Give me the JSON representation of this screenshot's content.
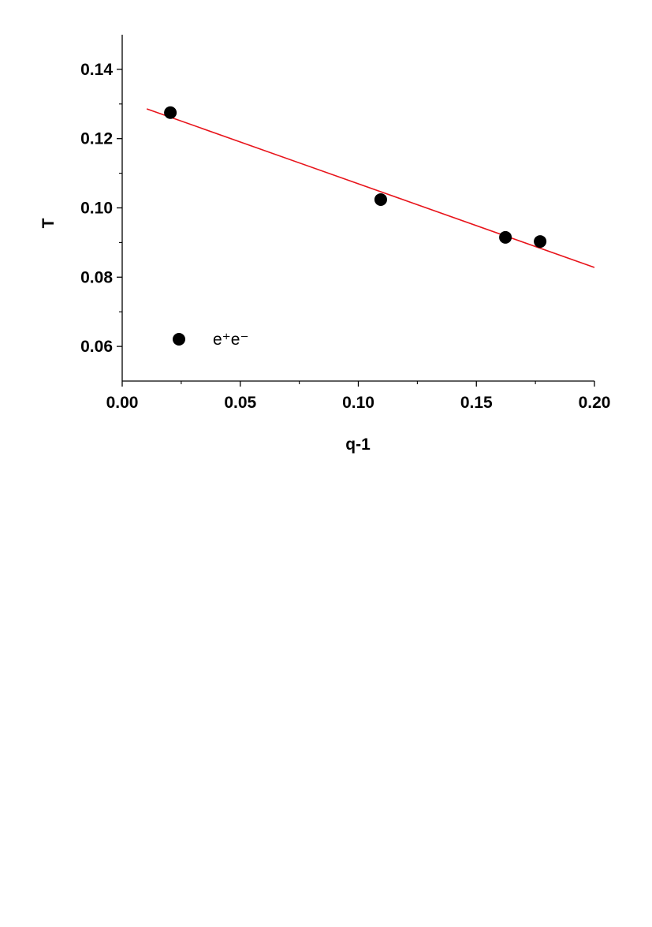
{
  "chart_data": {
    "type": "scatter",
    "x_label": "q-1",
    "y_label": "T",
    "xlim": [
      0,
      0.2
    ],
    "ylim": [
      0.05,
      0.15
    ],
    "xticks": [
      {
        "value": 0,
        "label": "0.00"
      },
      {
        "value": 0.05,
        "label": "0.05"
      },
      {
        "value": 0.1,
        "label": "0.10"
      },
      {
        "value": 0.15,
        "label": "0.15"
      },
      {
        "value": 0.2,
        "label": "0.20"
      }
    ],
    "yticks": [
      {
        "value": 0.06,
        "label": "0.06"
      },
      {
        "value": 0.08,
        "label": "0.08"
      },
      {
        "value": 0.1,
        "label": "0.10"
      },
      {
        "value": 0.12,
        "label": "0.12"
      },
      {
        "value": 0.14,
        "label": "0.14"
      }
    ],
    "series": [
      {
        "name": "e⁺e⁻",
        "color": "#000000",
        "x": [
          0.0204,
          0.1095,
          0.1623,
          0.177
        ],
        "values": [
          0.1275,
          0.1024,
          0.0915,
          0.0903
        ]
      }
    ],
    "fit": {
      "color": "#e8141b",
      "x": [
        0.0104,
        0.2
      ],
      "values": [
        0.1286,
        0.0828
      ]
    },
    "legend": "lower left"
  }
}
